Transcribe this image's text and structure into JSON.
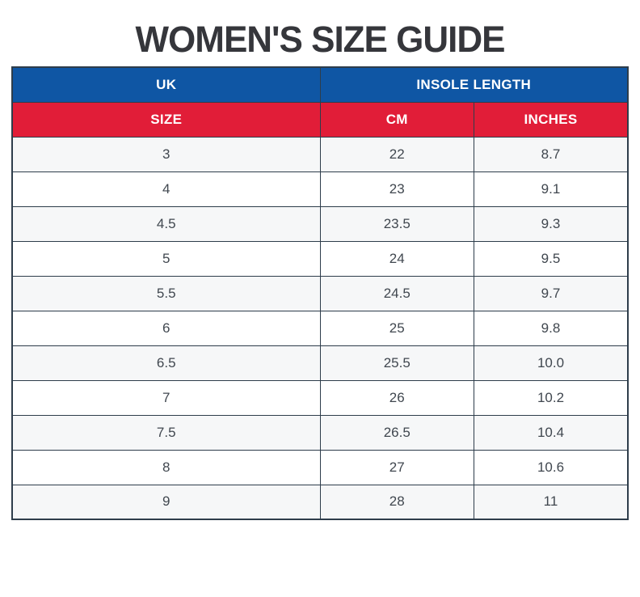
{
  "page": {
    "title": "WOMEN'S SIZE GUIDE"
  },
  "table": {
    "header_groups": [
      {
        "label": "UK"
      },
      {
        "label": "INSOLE LENGTH"
      }
    ],
    "columns": [
      {
        "key": "size",
        "label": "SIZE"
      },
      {
        "key": "cm",
        "label": "CM"
      },
      {
        "key": "inches",
        "label": "INCHES"
      }
    ],
    "column_keys": [
      "size",
      "cm",
      "inches"
    ],
    "rows": [
      [
        "3",
        "22",
        "8.7"
      ],
      [
        "4",
        "23",
        "9.1"
      ],
      [
        "4.5",
        "23.5",
        "9.3"
      ],
      [
        "5",
        "24",
        "9.5"
      ],
      [
        "5.5",
        "24.5",
        "9.7"
      ],
      [
        "6",
        "25",
        "9.8"
      ],
      [
        "6.5",
        "25.5",
        "10.0"
      ],
      [
        "7",
        "26",
        "10.2"
      ],
      [
        "7.5",
        "26.5",
        "10.4"
      ],
      [
        "8",
        "27",
        "10.6"
      ],
      [
        "9",
        "28",
        "11"
      ]
    ]
  },
  "colors": {
    "header_blue": "#0F56A4",
    "header_red": "#E11D38",
    "border": "#2E3D4B",
    "row_alt": "#F6F7F8",
    "text_dark": "#40474F",
    "title": "#35363B"
  }
}
